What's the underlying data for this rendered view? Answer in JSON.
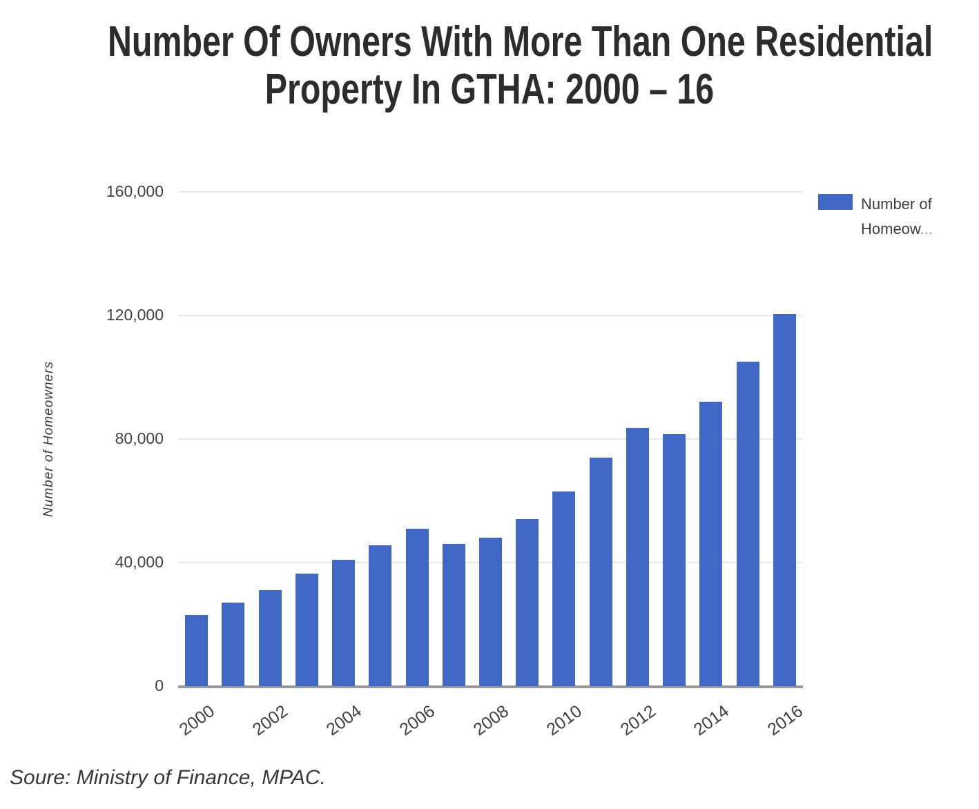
{
  "title": {
    "line1": "Number Of Owners With More Than One Residential",
    "line2": "Property In GTHA: 2000 – 16"
  },
  "y_axis_title": "Number of Homeowners",
  "legend": {
    "line1": "Number of",
    "line2": "Homeow",
    "ellipsis": "...",
    "swatch_color": "#3e67c6"
  },
  "source_note": "Soure: Ministry of Finance, MPAC.",
  "chart_data": {
    "type": "bar",
    "title": "Number Of Owners With More Than One Residential Property In GTHA: 2000 – 16",
    "categories": [
      "2000",
      "2001",
      "2002",
      "2003",
      "2004",
      "2005",
      "2006",
      "2007",
      "2008",
      "2009",
      "2010",
      "2011",
      "2012",
      "2013",
      "2014",
      "2015",
      "2016"
    ],
    "values": [
      23000,
      27000,
      31000,
      36500,
      41000,
      45500,
      51000,
      46000,
      48000,
      54000,
      63000,
      74000,
      83500,
      81500,
      92000,
      105000,
      120500
    ],
    "series_name": "Number of Homeowners",
    "xlabel": "",
    "ylabel": "Number of Homeowners",
    "ylim": [
      0,
      160000
    ],
    "yticks": [
      0,
      40000,
      80000,
      120000,
      160000
    ],
    "ytick_labels": [
      "0",
      "40,000",
      "80,000",
      "120,000",
      "160,000"
    ],
    "xtick_shown": [
      "2000",
      "2002",
      "2004",
      "2006",
      "2008",
      "2010",
      "2012",
      "2014",
      "2016"
    ],
    "legend_label_truncated": "Number of Homeow...",
    "legend_position": "right",
    "grid": true,
    "bar_color": "#3e67c6",
    "gridline_color": "#e8e8e8",
    "axis_line_color": "#9a9a9a"
  }
}
